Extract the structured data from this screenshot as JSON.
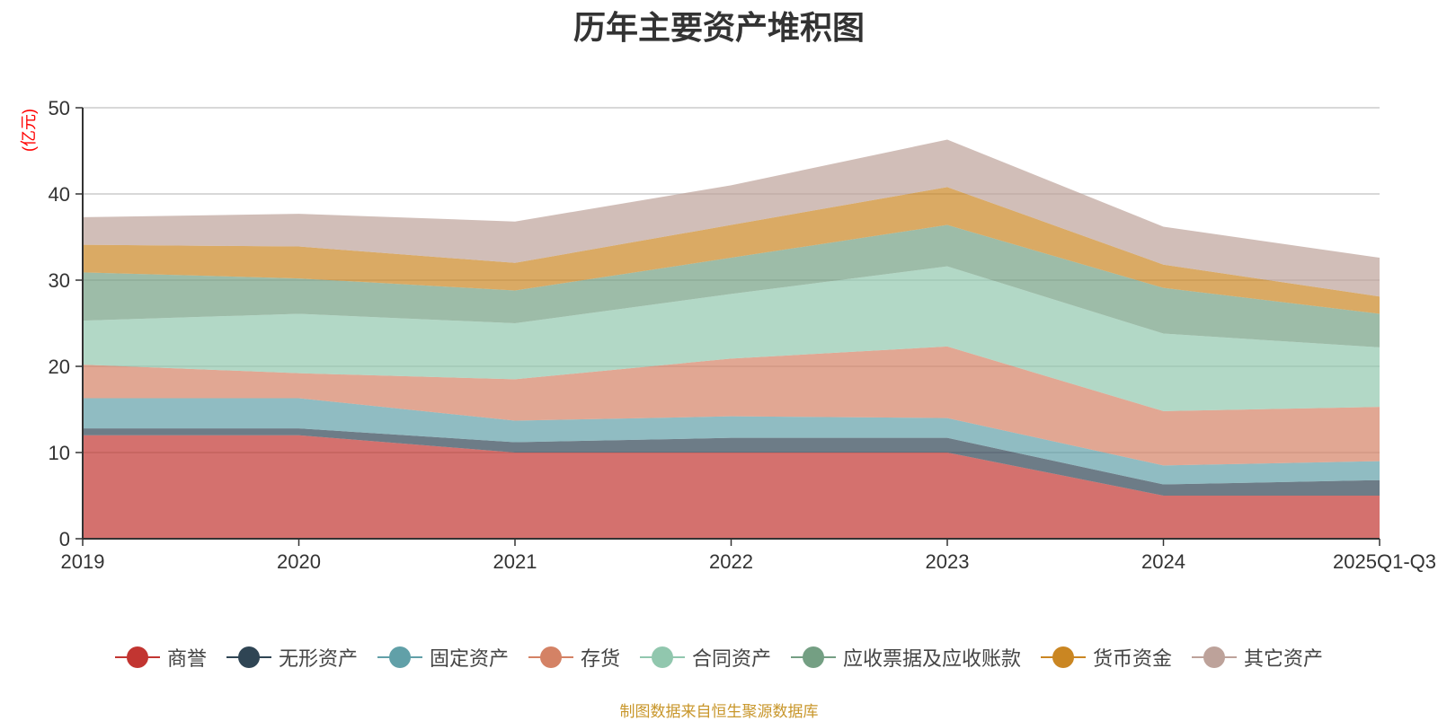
{
  "chart_data": {
    "type": "area",
    "stacked": true,
    "title": "历年主要资产堆积图",
    "ylabel": "(亿元)",
    "xlabel": "",
    "ylim": [
      0,
      50
    ],
    "yticks": [
      0,
      10,
      20,
      30,
      40,
      50
    ],
    "grid": true,
    "legend_position": "bottom",
    "categories": [
      "2019",
      "2020",
      "2021",
      "2022",
      "2023",
      "2024",
      "2025Q1-Q3"
    ],
    "series": [
      {
        "name": "商誉",
        "color": "#c23531",
        "values": [
          12.0,
          12.0,
          10.0,
          10.0,
          10.0,
          5.0,
          5.0
        ]
      },
      {
        "name": "无形资产",
        "color": "#2f4554",
        "values": [
          0.8,
          0.8,
          1.2,
          1.7,
          1.7,
          1.3,
          1.8
        ]
      },
      {
        "name": "固定资产",
        "color": "#61a0a8",
        "values": [
          3.5,
          3.5,
          2.5,
          2.5,
          2.3,
          2.2,
          2.2
        ]
      },
      {
        "name": "存货",
        "color": "#d48265",
        "values": [
          3.9,
          2.9,
          4.8,
          6.7,
          8.3,
          6.3,
          6.3
        ]
      },
      {
        "name": "合同资产",
        "color": "#91c7ae",
        "values": [
          5.1,
          6.9,
          6.5,
          7.5,
          9.3,
          9.0,
          6.9
        ]
      },
      {
        "name": "应收票据及应收账款",
        "color": "#749f83",
        "values": [
          5.6,
          4.1,
          3.8,
          4.2,
          4.8,
          5.3,
          3.9
        ]
      },
      {
        "name": "货币资金",
        "color": "#ca8622",
        "values": [
          3.2,
          3.7,
          3.2,
          3.8,
          4.4,
          2.7,
          2.0
        ]
      },
      {
        "name": "其它资产",
        "color": "#bda29a",
        "values": [
          3.2,
          3.8,
          4.8,
          4.6,
          5.5,
          4.4,
          4.5
        ]
      }
    ]
  },
  "footer": {
    "source": "制图数据来自恒生聚源数据库"
  }
}
